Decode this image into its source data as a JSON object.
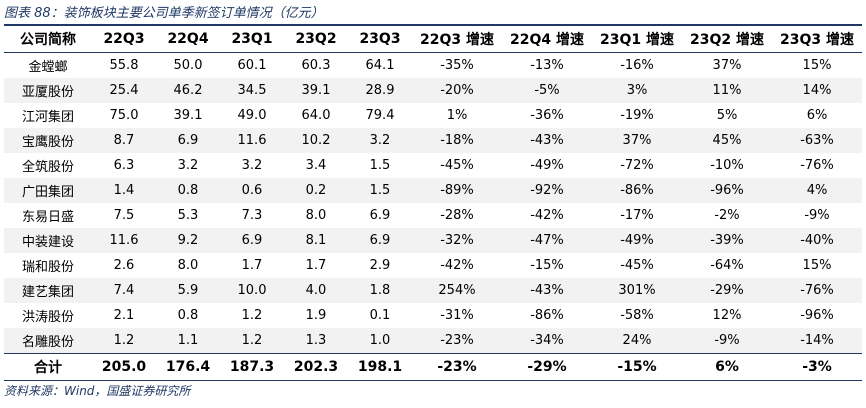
{
  "title": "图表 88：装饰板块主要公司单季新签订单情况（亿元）",
  "table": {
    "header": [
      "公司简称",
      "22Q3",
      "22Q4",
      "23Q1",
      "23Q2",
      "23Q3",
      "22Q3 增速",
      "22Q4 增速",
      "23Q1 增速",
      "23Q2 增速",
      "23Q3 增速"
    ],
    "rows": [
      [
        "金螳螂",
        "55.8",
        "50.0",
        "60.1",
        "60.3",
        "64.1",
        "-35%",
        "-13%",
        "-16%",
        "37%",
        "15%"
      ],
      [
        "亚厦股份",
        "25.4",
        "46.2",
        "34.5",
        "39.1",
        "28.9",
        "-20%",
        "-5%",
        "3%",
        "11%",
        "14%"
      ],
      [
        "江河集团",
        "75.0",
        "39.1",
        "49.0",
        "64.0",
        "79.4",
        "1%",
        "-36%",
        "-19%",
        "5%",
        "6%"
      ],
      [
        "宝鹰股份",
        "8.7",
        "6.9",
        "11.6",
        "10.2",
        "3.2",
        "-18%",
        "-43%",
        "37%",
        "45%",
        "-63%"
      ],
      [
        "全筑股份",
        "6.3",
        "3.2",
        "3.2",
        "3.4",
        "1.5",
        "-45%",
        "-49%",
        "-72%",
        "-10%",
        "-76%"
      ],
      [
        "广田集团",
        "1.4",
        "0.8",
        "0.6",
        "0.2",
        "1.5",
        "-89%",
        "-92%",
        "-86%",
        "-96%",
        "4%"
      ],
      [
        "东易日盛",
        "7.5",
        "5.3",
        "7.3",
        "8.0",
        "6.9",
        "-28%",
        "-42%",
        "-17%",
        "-2%",
        "-9%"
      ],
      [
        "中装建设",
        "11.6",
        "9.2",
        "6.9",
        "8.1",
        "6.9",
        "-32%",
        "-47%",
        "-49%",
        "-39%",
        "-40%"
      ],
      [
        "瑞和股份",
        "2.6",
        "8.0",
        "1.7",
        "1.7",
        "2.9",
        "-42%",
        "-15%",
        "-45%",
        "-64%",
        "15%"
      ],
      [
        "建艺集团",
        "7.4",
        "5.9",
        "10.0",
        "4.0",
        "1.8",
        "254%",
        "-43%",
        "301%",
        "-29%",
        "-76%"
      ],
      [
        "洪涛股份",
        "2.1",
        "0.8",
        "1.2",
        "1.9",
        "0.1",
        "-31%",
        "-86%",
        "-58%",
        "12%",
        "-96%"
      ],
      [
        "名雕股份",
        "1.2",
        "1.1",
        "1.2",
        "1.3",
        "1.0",
        "-23%",
        "-34%",
        "24%",
        "-9%",
        "-14%"
      ]
    ],
    "total": [
      "合计",
      "205.0",
      "176.4",
      "187.3",
      "202.3",
      "198.1",
      "-23%",
      "-29%",
      "-15%",
      "6%",
      "-3%"
    ]
  },
  "source": "资料来源：Wind，国盛证券研究所"
}
